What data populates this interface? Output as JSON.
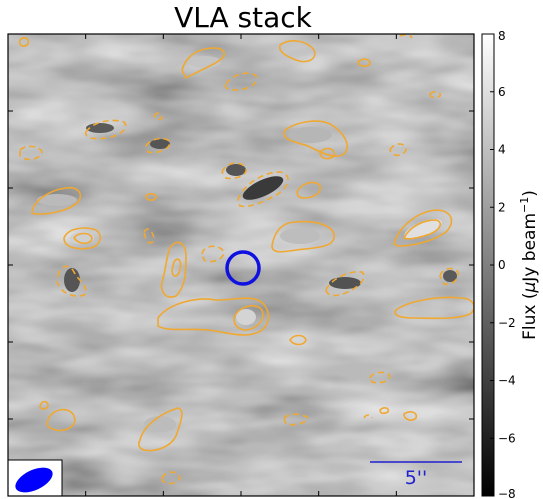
{
  "chart_data": {
    "type": "heatmap",
    "title": "VLA stack",
    "colorbar": {
      "label_main": "Flux (",
      "label_mu": "μ",
      "label_rest": "Jy beam",
      "label_exp": "−1",
      "label_close": ")",
      "range": [
        -8,
        8
      ],
      "ticks": [
        8,
        6,
        4,
        2,
        0,
        -2,
        -4,
        -6,
        -8
      ],
      "tick_labels": [
        "8",
        "6",
        "4",
        "2",
        "0",
        "−2",
        "−4",
        "−6",
        "−8"
      ],
      "colormap": "greys (black = low, white = high)"
    },
    "scale_bar": {
      "label": "5''"
    },
    "marker": {
      "shape": "circle",
      "color": "#1010e0",
      "position": "image center"
    },
    "beam": {
      "shape": "ellipse",
      "color": "#0000ff",
      "position": "bottom-left"
    },
    "contours": {
      "color": "#f0a830",
      "positive": "solid",
      "negative": "dashed"
    }
  }
}
